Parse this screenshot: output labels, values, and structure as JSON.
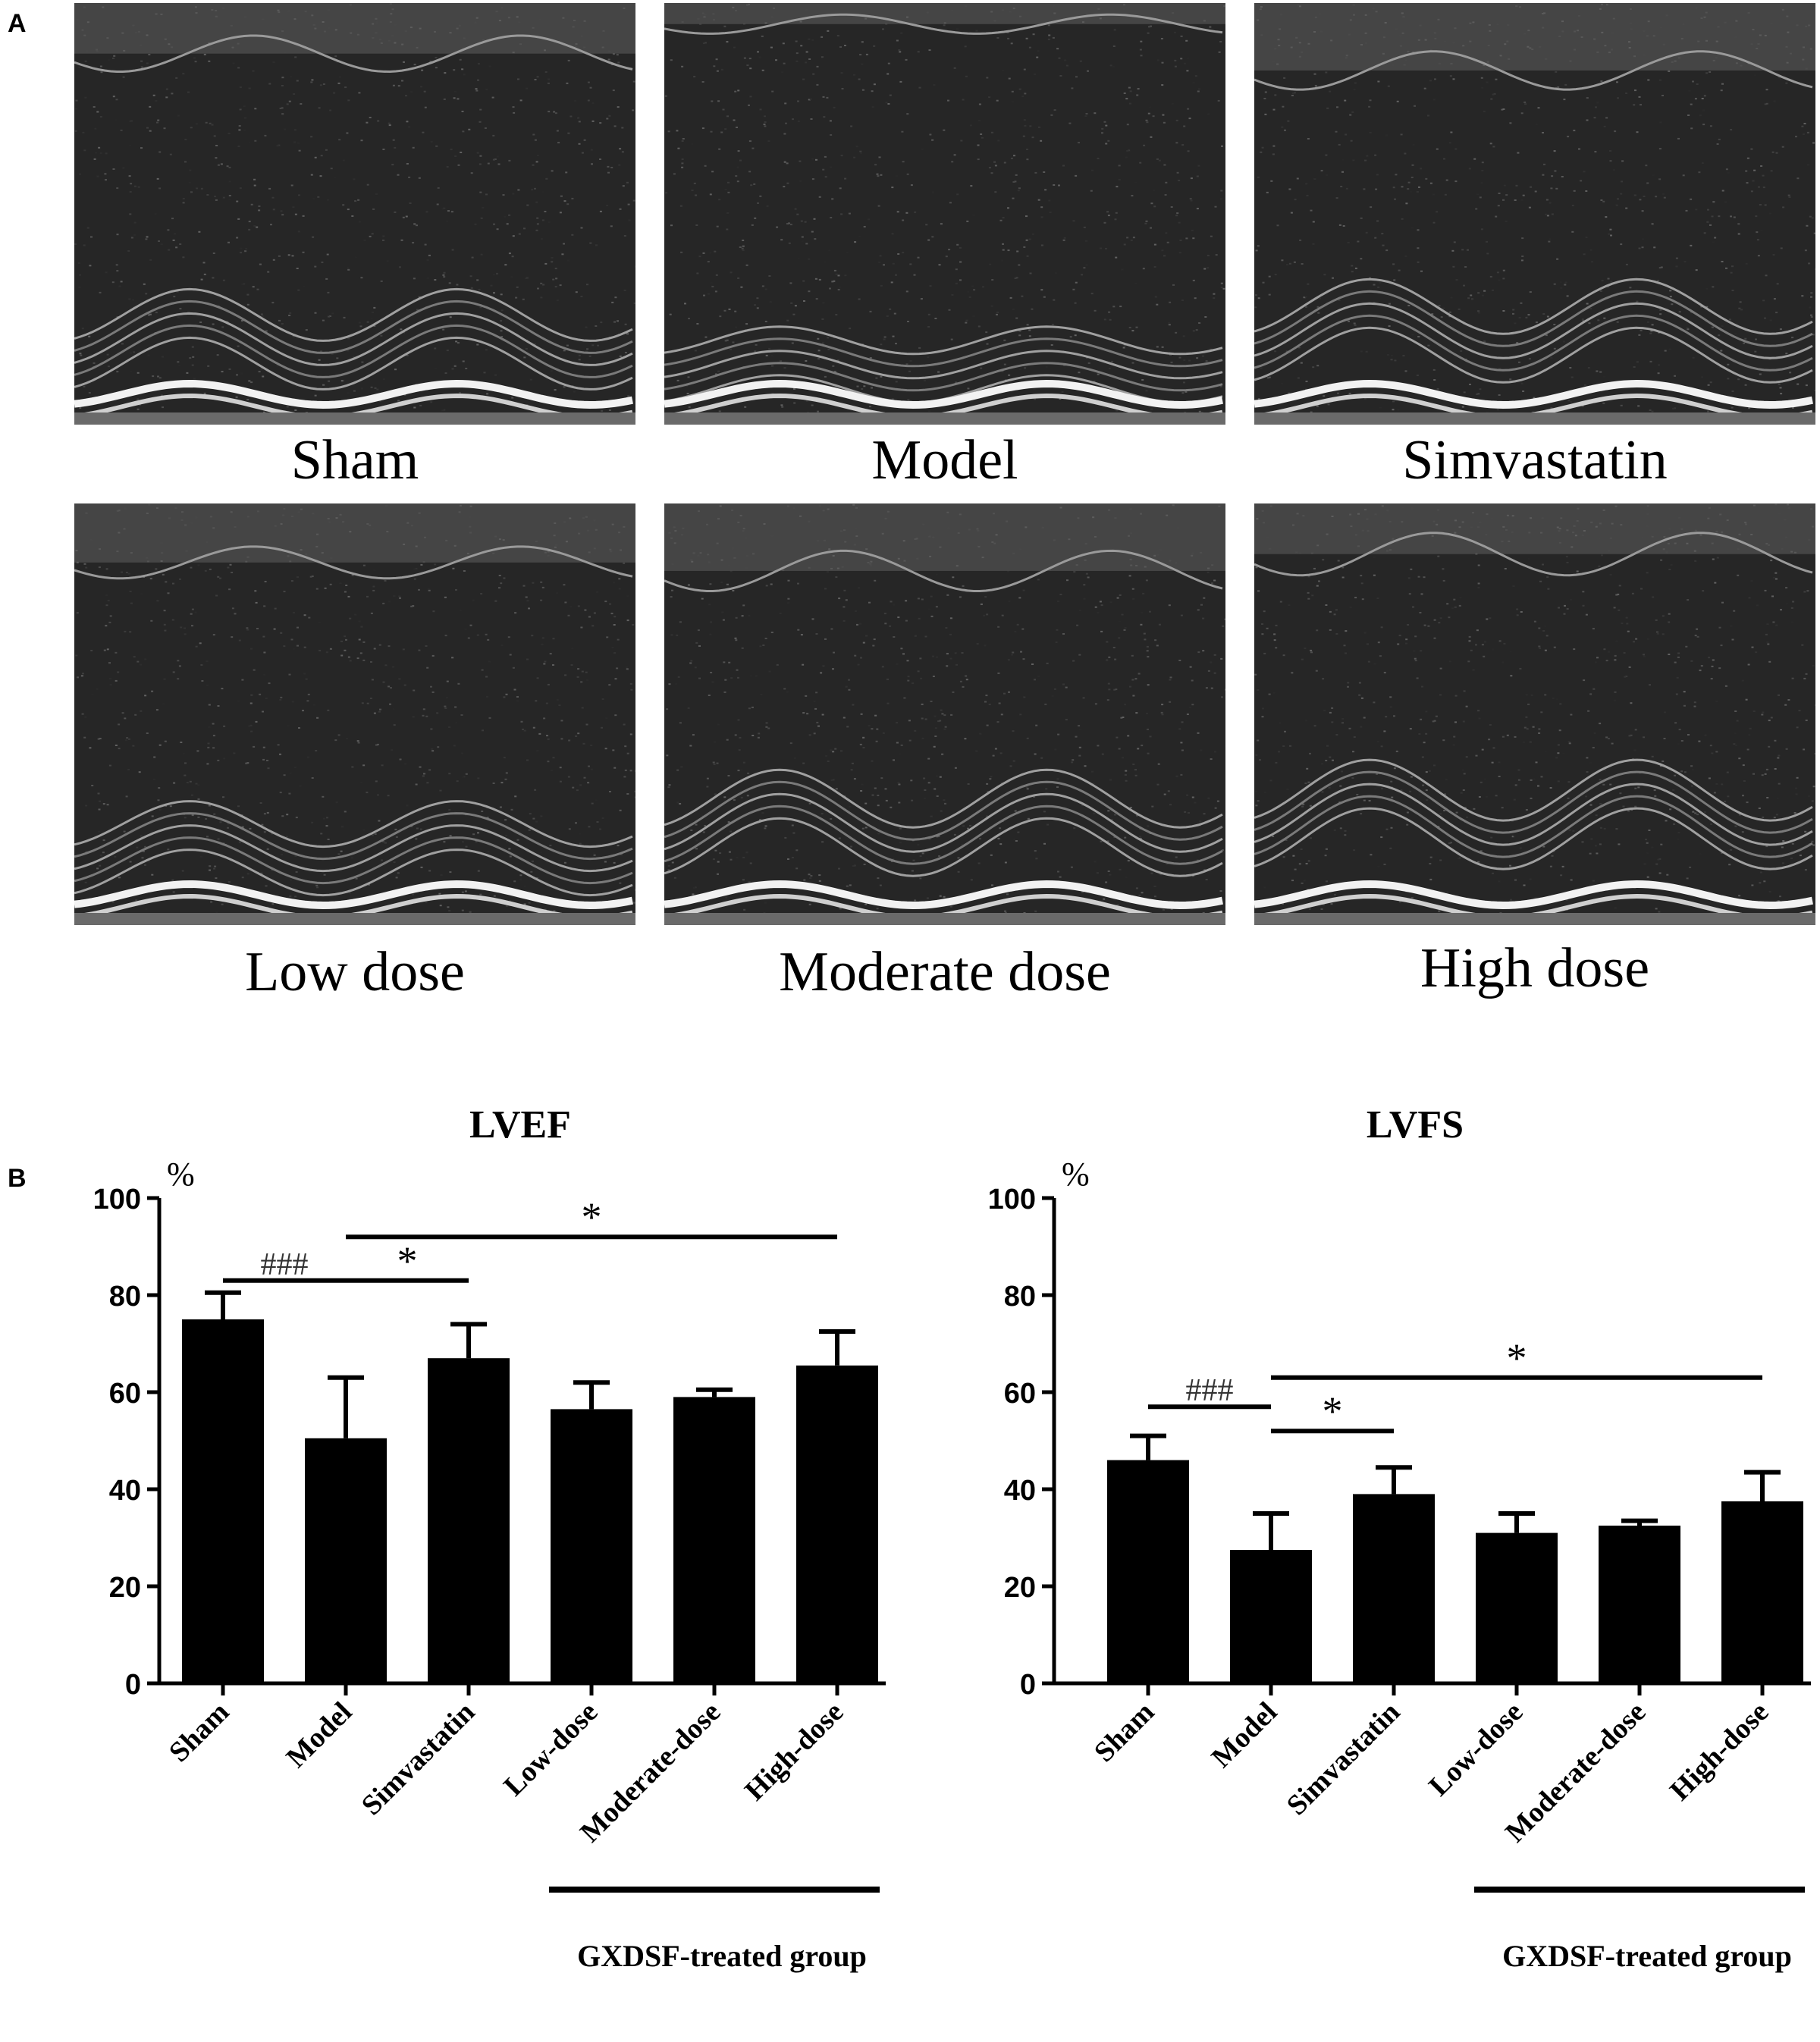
{
  "panel_labels": {
    "a": "A",
    "b": "B"
  },
  "echo_panels": [
    {
      "label": "Sham"
    },
    {
      "label": "Model"
    },
    {
      "label": "Simvastatin"
    },
    {
      "label": "Low dose"
    },
    {
      "label": "Moderate dose"
    },
    {
      "label": "High dose"
    }
  ],
  "chart_data": [
    {
      "type": "bar",
      "title": "LVEF",
      "ylabel": "%",
      "ylim": [
        0,
        100
      ],
      "yticks": [
        0,
        20,
        40,
        60,
        80,
        100
      ],
      "categories": [
        "Sham",
        "Model",
        "Simvastatin",
        "Low-dose",
        "Moderate-dose",
        "High-dose"
      ],
      "values": [
        75,
        50.5,
        67,
        56.5,
        59,
        65.5
      ],
      "errors": [
        5.5,
        12.5,
        7,
        5.5,
        1.5,
        7
      ],
      "significance": [
        {
          "from": 0,
          "to": 1,
          "label": "###",
          "y": 83
        },
        {
          "from": 1,
          "to": 2,
          "label": "*",
          "y": 83
        },
        {
          "from": 1,
          "to": 5,
          "label": "*",
          "y": 92
        }
      ],
      "group_bracket": {
        "from": 3,
        "to": 5,
        "label": "GXDSF-treated group"
      }
    },
    {
      "type": "bar",
      "title": "LVFS",
      "ylabel": "%",
      "ylim": [
        0,
        100
      ],
      "yticks": [
        0,
        20,
        40,
        60,
        80,
        100
      ],
      "categories": [
        "Sham",
        "Model",
        "Simvastatin",
        "Low-dose",
        "Moderate-dose",
        "High-dose"
      ],
      "values": [
        46,
        27.5,
        39,
        31,
        32.5,
        37.5
      ],
      "errors": [
        5,
        7.5,
        5.5,
        4,
        1,
        6
      ],
      "significance": [
        {
          "from": 0,
          "to": 1,
          "label": "###",
          "y": 57
        },
        {
          "from": 1,
          "to": 2,
          "label": "*",
          "y": 52
        },
        {
          "from": 1,
          "to": 5,
          "label": "*",
          "y": 63
        }
      ],
      "group_bracket": {
        "from": 3,
        "to": 5,
        "label": "GXDSF-treated group"
      }
    }
  ]
}
